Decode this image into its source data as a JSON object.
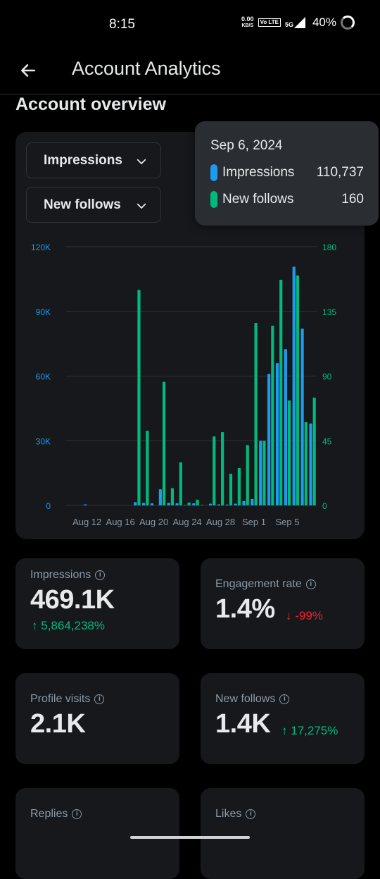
{
  "status_bar": {
    "time": "8:15",
    "net_speed_value": "0.00",
    "net_speed_unit": "KB/S",
    "volte": "Vo LTE",
    "signal": "5G",
    "battery": "40%"
  },
  "header": {
    "title": "Account Analytics",
    "back_icon": "arrow-left-icon"
  },
  "section_title": "Account overview",
  "chart_card": {
    "dropdown_primary": "Impressions",
    "dropdown_secondary": "New follows",
    "tooltip": {
      "date": "Sep 6, 2024",
      "rows": [
        {
          "label": "Impressions",
          "value": "110,737",
          "color": "#1d9bf0"
        },
        {
          "label": "New follows",
          "value": "160",
          "color": "#00ba7c"
        }
      ]
    }
  },
  "chart_data": {
    "type": "bar",
    "x_labels": [
      "Aug 12",
      "Aug 16",
      "Aug 20",
      "Aug 24",
      "Aug 28",
      "Sep 1",
      "Sep 5"
    ],
    "left_axis": {
      "ticks": [
        "0",
        "30K",
        "60K",
        "90K",
        "120K"
      ],
      "max": 120000,
      "color": "#1d9bf0"
    },
    "right_axis": {
      "ticks": [
        "0",
        "45",
        "90",
        "135",
        "180"
      ],
      "max": 180,
      "color": "#00ba7c"
    },
    "dates": [
      "Aug 10",
      "Aug 11",
      "Aug 12",
      "Aug 13",
      "Aug 14",
      "Aug 15",
      "Aug 16",
      "Aug 17",
      "Aug 18",
      "Aug 19",
      "Aug 20",
      "Aug 21",
      "Aug 22",
      "Aug 23",
      "Aug 24",
      "Aug 25",
      "Aug 26",
      "Aug 27",
      "Aug 28",
      "Aug 29",
      "Aug 30",
      "Aug 31",
      "Sep 1",
      "Sep 2",
      "Sep 3",
      "Sep 4",
      "Sep 5",
      "Sep 6",
      "Sep 7",
      "Sep 8"
    ],
    "series": [
      {
        "name": "Impressions",
        "color": "#1d9bf0",
        "values": [
          0,
          0,
          500,
          0,
          0,
          0,
          0,
          0,
          1500,
          1200,
          1000,
          7500,
          1200,
          1000,
          200,
          1000,
          200,
          800,
          500,
          400,
          800,
          2000,
          3000,
          30000,
          61000,
          66000,
          72500,
          110737,
          82000,
          38000
        ]
      },
      {
        "name": "New follows",
        "color": "#00ba7c",
        "values": [
          0,
          0,
          0,
          0,
          0,
          0,
          0,
          0,
          150,
          52,
          0,
          86,
          12,
          30,
          2,
          4,
          0,
          48,
          51,
          22,
          26,
          42,
          127,
          45,
          125,
          157,
          73,
          160,
          58,
          75
        ]
      }
    ],
    "grid": true,
    "tooltip_date": "Sep 6, 2024"
  },
  "stats": [
    {
      "label": "Impressions",
      "value": "469.1K",
      "change": "5,864,238%",
      "direction": "up",
      "arrow": "↑"
    },
    {
      "label": "Engagement rate",
      "value": "1.4%",
      "change": "-99%",
      "direction": "down",
      "arrow": "↓"
    },
    {
      "label": "Profile visits",
      "value": "2.1K",
      "change": "",
      "direction": "none",
      "arrow": ""
    },
    {
      "label": "New follows",
      "value": "1.4K",
      "change": "17,275%",
      "direction": "up",
      "arrow": "↑"
    },
    {
      "label": "Replies",
      "value": "",
      "change": "",
      "direction": "none",
      "arrow": ""
    },
    {
      "label": "Likes",
      "value": "",
      "change": "",
      "direction": "none",
      "arrow": ""
    }
  ],
  "info_icon": "info-icon"
}
